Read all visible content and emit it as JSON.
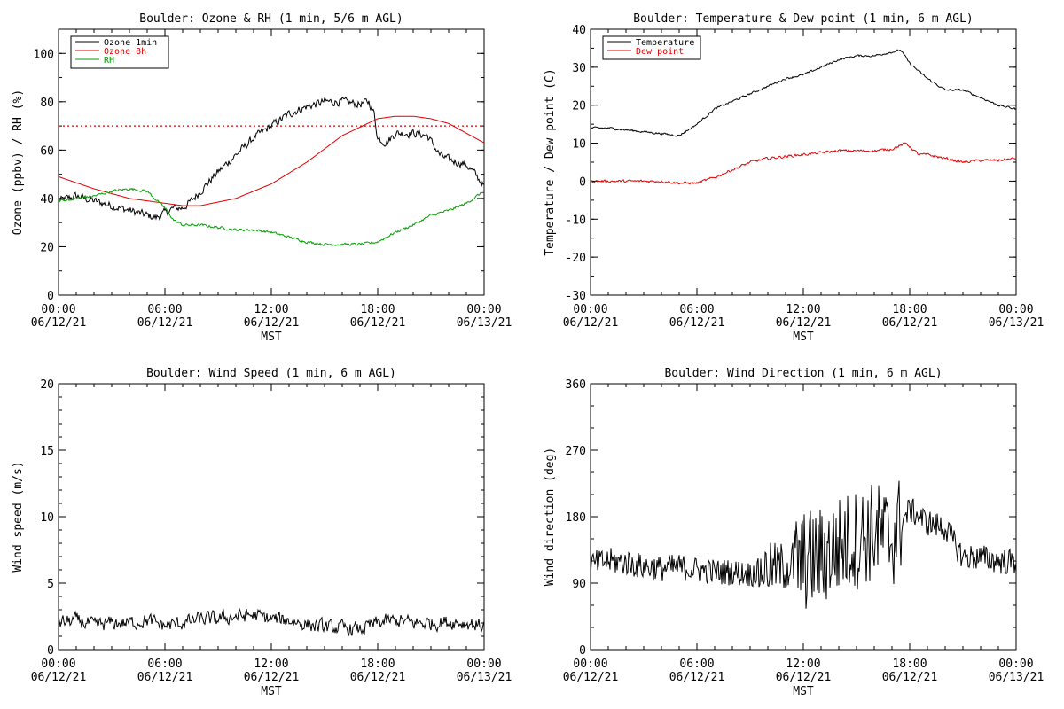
{
  "figure": {
    "x_tick_labels": [
      {
        "time": "00:00",
        "date": "06/12/21"
      },
      {
        "time": "06:00",
        "date": "06/12/21"
      },
      {
        "time": "12:00",
        "date": "06/12/21"
      },
      {
        "time": "18:00",
        "date": "06/12/21"
      },
      {
        "time": "00:00",
        "date": "06/13/21"
      }
    ],
    "x_axis_label": "MST"
  },
  "chart_data": [
    {
      "type": "line",
      "title": "Boulder: Ozone & RH (1 min, 5/6 m AGL)",
      "xlabel": "MST",
      "ylabel": "Ozone (ppbv) / RH (%)",
      "xlim": [
        "06/12/21 00:00",
        "06/13/21 00:00"
      ],
      "ylim": [
        0,
        110
      ],
      "yticks": [
        0,
        20,
        40,
        60,
        80,
        100
      ],
      "grid": false,
      "legend_position": "top-left",
      "reference_line": {
        "y": 70,
        "color": "#e00000",
        "style": "dotted"
      },
      "series": [
        {
          "name": "Ozone 1min",
          "color": "#000000",
          "x_hours": [
            0,
            1,
            2,
            3,
            4,
            5,
            5.5,
            6,
            6.5,
            7,
            7.5,
            8,
            9,
            10,
            11,
            12,
            13,
            14,
            15,
            16,
            17,
            17.5,
            17.8,
            18,
            18.5,
            19,
            20,
            20.8,
            21.5,
            22,
            23,
            23.5,
            24
          ],
          "values": [
            39,
            41,
            39,
            37,
            35,
            33,
            32,
            34,
            36,
            36,
            39,
            43,
            51,
            58,
            65,
            70,
            75,
            78,
            80,
            80,
            79,
            80,
            75,
            65,
            63,
            67,
            67,
            66,
            58,
            56,
            54,
            50,
            45
          ]
        },
        {
          "name": "Ozone 8h",
          "color": "#e00000",
          "x_hours": [
            0,
            2,
            4,
            6,
            7,
            8,
            10,
            12,
            14,
            16,
            18,
            19,
            20,
            21,
            22,
            23,
            24
          ],
          "values": [
            49,
            44,
            40,
            38,
            37,
            37,
            40,
            46,
            55,
            66,
            73,
            74,
            74,
            73,
            71,
            67,
            63
          ]
        },
        {
          "name": "RH",
          "color": "#00a000",
          "x_hours": [
            0,
            1,
            2,
            3,
            4,
            5,
            6,
            6.5,
            7,
            8,
            9,
            10,
            11,
            12,
            13,
            14,
            15,
            16,
            17,
            18,
            19,
            20,
            21,
            22,
            23,
            24
          ],
          "values": [
            39,
            40,
            41,
            43,
            44,
            43,
            36,
            31,
            29,
            29,
            28,
            27,
            27,
            26,
            24,
            22,
            21,
            21,
            21,
            22,
            26,
            29,
            33,
            35,
            38,
            43
          ]
        }
      ]
    },
    {
      "type": "line",
      "title": "Boulder: Temperature & Dew point (1 min, 6 m AGL)",
      "xlabel": "MST",
      "ylabel": "Temperature / Dew point (C)",
      "xlim": [
        "06/12/21 00:00",
        "06/13/21 00:00"
      ],
      "ylim": [
        -30,
        40
      ],
      "yticks": [
        -30,
        -20,
        -10,
        0,
        10,
        20,
        30,
        40
      ],
      "grid": false,
      "legend_position": "top-left",
      "series": [
        {
          "name": "Temperature",
          "color": "#000000",
          "x_hours": [
            0,
            1,
            2,
            3,
            4,
            5,
            6,
            7,
            8,
            9,
            10,
            11,
            12,
            13,
            14,
            15,
            16,
            17,
            17.5,
            18,
            19,
            20,
            21,
            22,
            23,
            24
          ],
          "values": [
            14,
            14,
            13.5,
            13,
            12.5,
            12,
            15,
            19,
            21,
            23,
            25,
            27,
            28,
            30,
            32,
            33,
            33,
            34,
            34.5,
            31,
            27,
            24,
            24,
            22,
            20,
            19
          ]
        },
        {
          "name": "Dew point",
          "color": "#e00000",
          "x_hours": [
            0,
            2,
            4,
            5,
            6,
            7,
            8,
            9,
            10,
            11,
            12,
            14,
            16,
            17,
            17.8,
            18.5,
            19,
            20,
            21,
            22,
            23,
            24
          ],
          "values": [
            0,
            0,
            0,
            -0.5,
            -0.5,
            1,
            3,
            5,
            6,
            6.5,
            7,
            8,
            8,
            8.5,
            10,
            7,
            7,
            6,
            5,
            5.5,
            5.5,
            6
          ]
        }
      ]
    },
    {
      "type": "line",
      "title": "Boulder: Wind Speed (1 min, 6 m AGL)",
      "xlabel": "MST",
      "ylabel": "Wind speed (m/s)",
      "xlim": [
        "06/12/21 00:00",
        "06/13/21 00:00"
      ],
      "ylim": [
        0,
        20
      ],
      "yticks": [
        0,
        5,
        10,
        15,
        20
      ],
      "grid": false,
      "series": [
        {
          "color": "#000000",
          "x_hours": [
            0,
            1,
            2,
            3,
            4,
            5,
            6,
            7,
            8,
            9,
            10,
            11,
            12,
            13,
            14,
            15,
            16,
            17,
            18,
            19,
            20,
            21,
            22,
            23,
            24
          ],
          "values": [
            2.0,
            2.2,
            1.8,
            2.0,
            2.0,
            2.2,
            1.8,
            2.0,
            2.3,
            2.3,
            2.5,
            2.6,
            2.3,
            2.2,
            1.9,
            1.7,
            1.6,
            1.5,
            2.0,
            2.2,
            2.0,
            2.0,
            2.1,
            2.0,
            1.8
          ]
        }
      ]
    },
    {
      "type": "line",
      "title": "Boulder: Wind Direction (1 min, 6 m AGL)",
      "xlabel": "MST",
      "ylabel": "Wind direction (deg)",
      "xlim": [
        "06/12/21 00:00",
        "06/13/21 00:00"
      ],
      "ylim": [
        0,
        360
      ],
      "yticks": [
        0,
        90,
        180,
        270,
        360
      ],
      "grid": false,
      "series": [
        {
          "color": "#000000",
          "x_hours": [
            0,
            1,
            2,
            3,
            4,
            5,
            6,
            7,
            8,
            9,
            10,
            11,
            12,
            13,
            14,
            15,
            16,
            17,
            18,
            19,
            20,
            21,
            22,
            23,
            24
          ],
          "values": [
            115,
            120,
            118,
            112,
            110,
            112,
            108,
            105,
            105,
            102,
            110,
            112,
            120,
            125,
            140,
            150,
            160,
            150,
            190,
            172,
            165,
            125,
            125,
            120,
            118
          ]
        }
      ]
    }
  ]
}
